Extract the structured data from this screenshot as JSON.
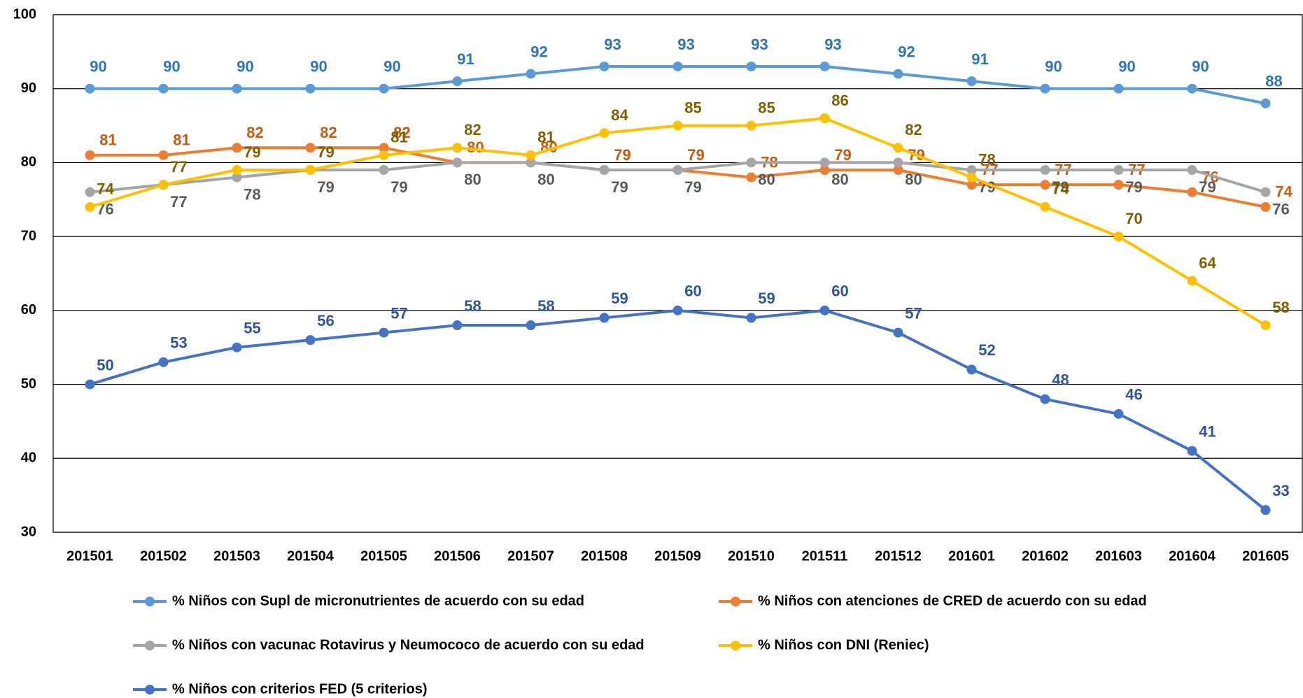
{
  "chart_data": {
    "type": "line",
    "categories": [
      "201501",
      "201502",
      "201503",
      "201504",
      "201505",
      "201506",
      "201507",
      "201508",
      "201509",
      "201510",
      "201511",
      "201512",
      "201601",
      "201602",
      "201603",
      "201604",
      "201605"
    ],
    "series": [
      {
        "name": "% Niños con Supl de micronutrientes de acuerdo con su edad",
        "color": "#5b9bd5",
        "label_color": "#2e75b6",
        "values": [
          90,
          90,
          90,
          90,
          90,
          91,
          92,
          93,
          93,
          93,
          93,
          92,
          91,
          90,
          90,
          90,
          88
        ]
      },
      {
        "name": "% Niños  con atenciones de CRED de acuerdo con su edad",
        "color": "#ed7d31",
        "label_color": "#c55a11",
        "values": [
          81,
          81,
          82,
          82,
          82,
          80,
          80,
          79,
          79,
          78,
          79,
          79,
          77,
          77,
          77,
          76,
          74
        ]
      },
      {
        "name": "% Niños con vacunac Rotavirus y Neumococo de acuerdo con su edad",
        "color": "#a5a5a5",
        "label_color": "#595959",
        "values": [
          76,
          77,
          78,
          79,
          79,
          80,
          80,
          79,
          79,
          80,
          80,
          80,
          79,
          79,
          79,
          79,
          76
        ]
      },
      {
        "name": "% Niños con DNI (Reniec)",
        "color": "#ffc000",
        "label_color": "#7f6000",
        "values": [
          74,
          77,
          79,
          79,
          81,
          82,
          81,
          84,
          85,
          85,
          86,
          82,
          78,
          74,
          70,
          64,
          58
        ]
      },
      {
        "name": "% Niños con criterios FED (5 criterios)",
        "color": "#4472c4",
        "label_color": "#2f5597",
        "values": [
          50,
          53,
          55,
          56,
          57,
          58,
          58,
          59,
          60,
          59,
          60,
          57,
          52,
          48,
          46,
          41,
          33
        ]
      }
    ],
    "ylim": [
      30,
      100
    ],
    "yticks": [
      30,
      40,
      50,
      60,
      70,
      80,
      90,
      100
    ],
    "grid": true
  }
}
